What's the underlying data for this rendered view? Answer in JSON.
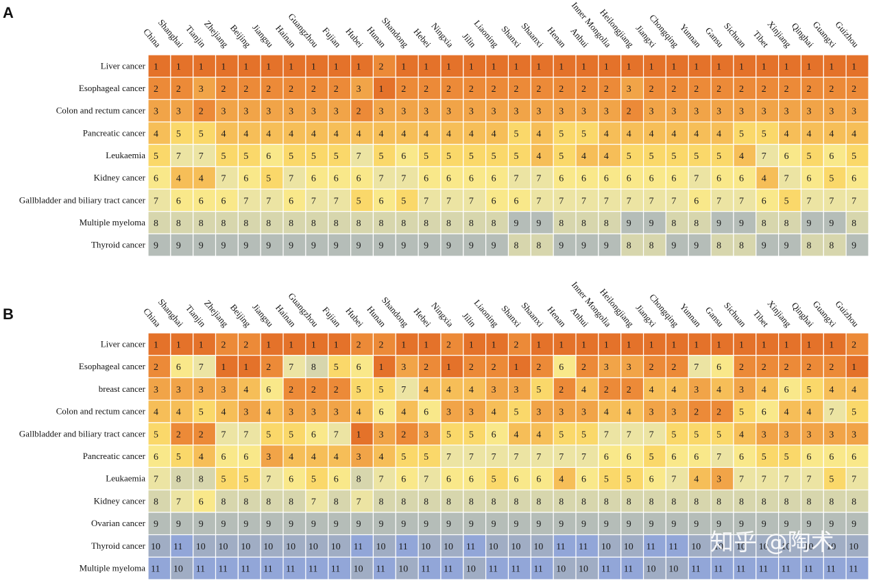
{
  "chart_data": [
    {
      "type": "heatmap",
      "panel": "A",
      "columns": [
        "China",
        "Shanghai",
        "Tianjin",
        "Zhejiang",
        "Beijing",
        "Jiangsu",
        "Hainan",
        "Guangzhou",
        "Fujian",
        "Hubei",
        "Hunan",
        "Shandong",
        "Hebei",
        "Ningxia",
        "Jilin",
        "Liaoning",
        "Shanxi",
        "Shaanxi",
        "Henan",
        "Anhui",
        "Inner Mongolia",
        "Heilongjiang",
        "Jiangxi",
        "Chongqing",
        "Yunnan",
        "Gansu",
        "Sichuan",
        "Tibet",
        "Xinjiang",
        "Qinghai",
        "Guangxi",
        "Guizhou"
      ],
      "rows": [
        "Liver cancer",
        "Esophageal cancer",
        "Colon and rectum cancer",
        "Pancreatic cancer",
        "Leukaemia",
        "Kidney cancer",
        "Gallbladder and biliary tract cancer",
        "Multiple myeloma",
        "Thyroid cancer"
      ],
      "values": [
        [
          1,
          1,
          1,
          1,
          1,
          1,
          1,
          1,
          1,
          1,
          2,
          1,
          1,
          1,
          1,
          1,
          1,
          1,
          1,
          1,
          1,
          1,
          1,
          1,
          1,
          1,
          1,
          1,
          1,
          1,
          1,
          1
        ],
        [
          2,
          2,
          3,
          2,
          2,
          2,
          2,
          2,
          2,
          3,
          1,
          2,
          2,
          2,
          2,
          2,
          2,
          2,
          2,
          2,
          2,
          3,
          2,
          2,
          2,
          2,
          2,
          2,
          2,
          2,
          2,
          2
        ],
        [
          3,
          3,
          2,
          3,
          3,
          3,
          3,
          3,
          3,
          2,
          3,
          3,
          3,
          3,
          3,
          3,
          3,
          3,
          3,
          3,
          3,
          2,
          3,
          3,
          3,
          3,
          3,
          3,
          3,
          3,
          3,
          3
        ],
        [
          4,
          5,
          5,
          4,
          4,
          4,
          4,
          4,
          4,
          4,
          4,
          4,
          4,
          4,
          4,
          4,
          5,
          4,
          5,
          5,
          4,
          4,
          4,
          4,
          4,
          4,
          5,
          5,
          4,
          4,
          4,
          4
        ],
        [
          5,
          7,
          7,
          5,
          5,
          6,
          5,
          5,
          5,
          7,
          5,
          6,
          5,
          5,
          5,
          5,
          5,
          4,
          5,
          4,
          4,
          5,
          5,
          5,
          5,
          5,
          4,
          7,
          6,
          5,
          6,
          5
        ],
        [
          6,
          4,
          4,
          7,
          6,
          5,
          7,
          6,
          6,
          6,
          7,
          7,
          6,
          6,
          6,
          6,
          7,
          7,
          6,
          6,
          6,
          6,
          6,
          6,
          7,
          6,
          6,
          4,
          7,
          6,
          5,
          6
        ],
        [
          7,
          6,
          6,
          6,
          7,
          7,
          6,
          7,
          7,
          5,
          6,
          5,
          7,
          7,
          7,
          6,
          6,
          7,
          7,
          7,
          7,
          7,
          7,
          7,
          6,
          7,
          7,
          6,
          5,
          7,
          7,
          7
        ],
        [
          8,
          8,
          8,
          8,
          8,
          8,
          8,
          8,
          8,
          8,
          8,
          8,
          8,
          8,
          8,
          8,
          9,
          9,
          8,
          8,
          8,
          9,
          9,
          8,
          8,
          9,
          9,
          8,
          8,
          9,
          9,
          8
        ],
        [
          9,
          9,
          9,
          9,
          9,
          9,
          9,
          9,
          9,
          9,
          9,
          9,
          9,
          9,
          9,
          9,
          8,
          8,
          9,
          9,
          9,
          8,
          8,
          9,
          9,
          8,
          8,
          9,
          9,
          8,
          8,
          9
        ]
      ]
    },
    {
      "type": "heatmap",
      "panel": "B",
      "columns": [
        "China",
        "Shanghai",
        "Tianjin",
        "Zhejiang",
        "Beijing",
        "Jiangsu",
        "Hainan",
        "Guangzhou",
        "Fujian",
        "Hubei",
        "Hunan",
        "Shandong",
        "Hebei",
        "Ningxia",
        "Jilin",
        "Liaoning",
        "Shanxi",
        "Shaanxi",
        "Henan",
        "Anhui",
        "Inner Mongolia",
        "Heilongjiang",
        "Jiangxi",
        "Chongqing",
        "Yunnan",
        "Gansu",
        "Sichuan",
        "Tibet",
        "Xinjiang",
        "Qinghai",
        "Guangxi",
        "Guizhou"
      ],
      "rows": [
        "Liver cancer",
        "Esophageal cancer",
        "breast cancer",
        "Colon and rectum cancer",
        "Gallbladder and biliary tract cancer",
        "Pancreatic cancer",
        "Leukaemia",
        "Kidney cancer",
        "Ovarian cancer",
        "Thyroid cancer",
        "Multiple myeloma"
      ],
      "values": [
        [
          1,
          1,
          1,
          2,
          2,
          1,
          1,
          1,
          1,
          2,
          2,
          1,
          1,
          2,
          1,
          1,
          2,
          1,
          1,
          1,
          1,
          1,
          1,
          1,
          1,
          1,
          1,
          1,
          1,
          1,
          1,
          2
        ],
        [
          2,
          6,
          7,
          1,
          1,
          2,
          7,
          8,
          5,
          6,
          1,
          3,
          2,
          1,
          2,
          2,
          1,
          2,
          6,
          2,
          3,
          3,
          2,
          2,
          7,
          6,
          2,
          2,
          2,
          2,
          2,
          1
        ],
        [
          3,
          3,
          3,
          3,
          4,
          6,
          2,
          2,
          2,
          5,
          5,
          7,
          4,
          4,
          4,
          3,
          3,
          5,
          2,
          4,
          2,
          2,
          4,
          4,
          3,
          4,
          3,
          4,
          6,
          5,
          4,
          4
        ],
        [
          4,
          4,
          5,
          4,
          3,
          4,
          3,
          3,
          3,
          4,
          6,
          4,
          6,
          3,
          3,
          4,
          5,
          3,
          3,
          3,
          4,
          4,
          3,
          3,
          2,
          2,
          5,
          6,
          4,
          4,
          7,
          5
        ],
        [
          5,
          2,
          2,
          7,
          7,
          5,
          5,
          6,
          7,
          1,
          3,
          2,
          3,
          5,
          5,
          6,
          4,
          4,
          5,
          5,
          7,
          7,
          7,
          5,
          5,
          5,
          4,
          3,
          3,
          3,
          3,
          3
        ],
        [
          6,
          5,
          4,
          6,
          6,
          3,
          4,
          4,
          4,
          3,
          4,
          5,
          5,
          7,
          7,
          7,
          7,
          7,
          7,
          7,
          6,
          6,
          5,
          6,
          6,
          7,
          6,
          5,
          5,
          6,
          6,
          6
        ],
        [
          7,
          8,
          8,
          5,
          5,
          7,
          6,
          5,
          6,
          8,
          7,
          6,
          7,
          6,
          6,
          5,
          6,
          6,
          4,
          6,
          5,
          5,
          6,
          7,
          4,
          3,
          7,
          7,
          7,
          7,
          5,
          7
        ],
        [
          8,
          7,
          6,
          8,
          8,
          8,
          8,
          7,
          8,
          7,
          8,
          8,
          8,
          8,
          8,
          8,
          8,
          8,
          8,
          8,
          8,
          8,
          8,
          8,
          8,
          8,
          8,
          8,
          8,
          8,
          8,
          8
        ],
        [
          9,
          9,
          9,
          9,
          9,
          9,
          9,
          9,
          9,
          9,
          9,
          9,
          9,
          9,
          9,
          9,
          9,
          9,
          9,
          9,
          9,
          9,
          9,
          9,
          9,
          9,
          9,
          9,
          9,
          9,
          9,
          9
        ],
        [
          10,
          11,
          10,
          10,
          10,
          10,
          10,
          10,
          10,
          11,
          10,
          11,
          10,
          10,
          11,
          10,
          10,
          10,
          11,
          11,
          10,
          10,
          11,
          11,
          10,
          10,
          10,
          10,
          10,
          10,
          10,
          10
        ],
        [
          11,
          10,
          11,
          11,
          11,
          11,
          11,
          11,
          11,
          10,
          11,
          10,
          11,
          11,
          10,
          11,
          11,
          11,
          10,
          10,
          11,
          11,
          10,
          10,
          11,
          11,
          11,
          11,
          11,
          11,
          11,
          11
        ]
      ]
    }
  ],
  "colors": {
    "scale": [
      "#e4722a",
      "#ec8a38",
      "#f1a448",
      "#f6be58",
      "#fad86a",
      "#f9e88a",
      "#ece4a3",
      "#d7d6ad",
      "#b5bdb8",
      "#a0adc4",
      "#92a6d8",
      "#7f9be0"
    ],
    "grid_line": "#ffffff"
  },
  "watermark": "知乎 @陶术"
}
